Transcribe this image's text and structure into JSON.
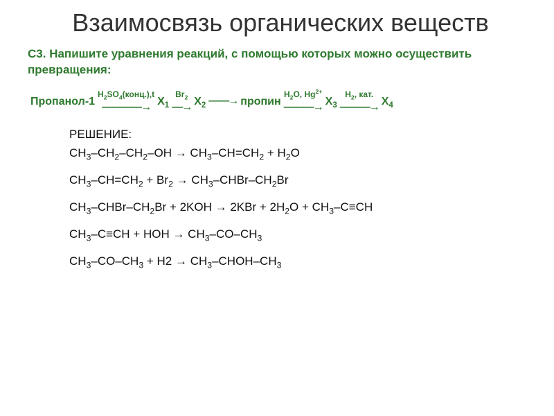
{
  "title_color": "#333333",
  "accent_color": "#2f7a2f",
  "text_color": "#111111",
  "background_color": "#ffffff",
  "title": "Взаимосвязь органических веществ",
  "task_prefix": "С3.",
  "task_text": "Напишите уравнения реакций, с помощью которых можно осуществить превращения:",
  "scheme": {
    "start": "Пропанол-1",
    "steps": [
      {
        "cond_html": "H<sub>2</sub>SO<sub>4</sub>(конц.),t",
        "to_html": "X<sub>1</sub>"
      },
      {
        "cond_html": "Br<sub>2</sub>",
        "to_html": "X<sub>2</sub>"
      },
      {
        "cond_html": "",
        "to_html": "пропин"
      },
      {
        "cond_html": "H<sub>2</sub>O, Hg<sup>2+</sup>",
        "to_html": "X<sub>3</sub>"
      },
      {
        "cond_html": "H<sub>2</sub>, кат.",
        "to_html": "X<sub>4</sub>"
      }
    ]
  },
  "solution_label": "РЕШЕНИЕ:",
  "equations_html": [
    "CH<sub>3</sub>–CH<sub>2</sub>–CH<sub>2</sub>–OH → CH<sub>3</sub>–CH=CH<sub>2</sub> + H<sub>2</sub>O",
    "CH<sub>3</sub>–CH=CH<sub>2</sub> + Br<sub>2</sub> → CH<sub>3</sub>–CHBr–CH<sub>2</sub>Br",
    "CH<sub>3</sub>–CHBr–CH<sub>2</sub>Br + 2KOH → 2KBr + 2H<sub>2</sub>O + CH<sub>3</sub>–C≡CH",
    "CH<sub>3</sub>–C≡CH + HOH → CH<sub>3</sub>–CO–CH<sub>3</sub>",
    "CH<sub>3</sub>–CO–CH<sub>3</sub> + H2 → CH<sub>3</sub>–CHOH–CH<sub>3</sub>"
  ]
}
